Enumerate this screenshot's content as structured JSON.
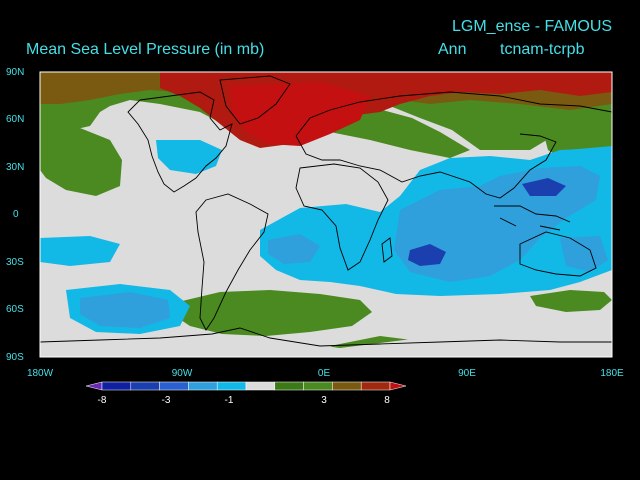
{
  "header": {
    "title_right": "LGM_ense - FAMOUS",
    "title_left": "Mean Sea Level Pressure (in mb)",
    "period": "Ann",
    "experiment": "tcnam-tcrpb"
  },
  "map": {
    "lat_labels": [
      "90N",
      "60N",
      "30N",
      "0",
      "30S",
      "60S",
      "90S"
    ],
    "lon_labels": [
      "180W",
      "90W",
      "0E",
      "90E",
      "180E"
    ],
    "colors": {
      "strong_negative": "#1c3fb0",
      "negative": "#2fa0dc",
      "weak_negative": "#12b8e6",
      "neutral": "#dcdcdc",
      "weak_positive": "#4a8a20",
      "positive": "#7a5a10",
      "strong_positive": "#b01a10"
    }
  },
  "colorbar": {
    "tick_labels": [
      "-8",
      "-3",
      "-1",
      "3",
      "8"
    ],
    "colors": [
      "#6a2ab8",
      "#1020a0",
      "#1c3fb0",
      "#2a60d0",
      "#2fa0dc",
      "#12b8e6",
      "#dcdcdc",
      "#3c7a18",
      "#4a8a20",
      "#7a5a10",
      "#a02a10",
      "#c01010"
    ]
  }
}
